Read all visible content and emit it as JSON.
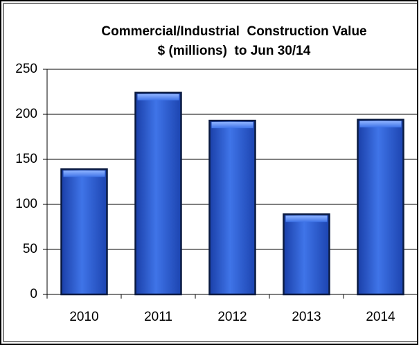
{
  "chart_data": {
    "type": "bar",
    "title": "Commercial/Industrial  Construction Value",
    "subtitle": "$ (millions)  to Jun 30/14",
    "categories": [
      "2010",
      "2011",
      "2012",
      "2013",
      "2014"
    ],
    "values": [
      139,
      224,
      193,
      89,
      194
    ],
    "color": "#2f5fd6",
    "ylim": [
      0,
      250
    ],
    "yticks": [
      0,
      50,
      100,
      150,
      200,
      250
    ],
    "grid": true
  }
}
